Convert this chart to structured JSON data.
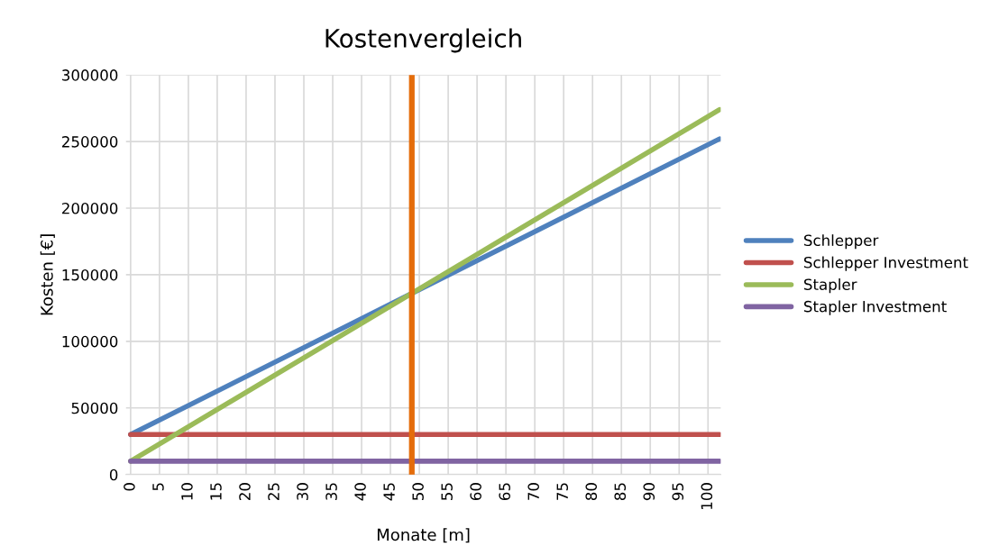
{
  "chart_data": {
    "type": "line",
    "title": "Kostenvergleich",
    "xlabel": "Monate [m]",
    "ylabel": "Kosten [€]",
    "x": [
      0,
      102
    ],
    "series": [
      {
        "name": "Schlepper",
        "color": "#4f81bd",
        "values": [
          30000,
          252000
        ]
      },
      {
        "name": "Schlepper Investment",
        "color": "#c0504d",
        "values": [
          30000,
          30000
        ]
      },
      {
        "name": "Stapler",
        "color": "#9bbb59",
        "values": [
          10000,
          274000
        ]
      },
      {
        "name": "Stapler Investment",
        "color": "#8064a2",
        "values": [
          10000,
          10000
        ]
      }
    ],
    "ref_lines": [
      {
        "axis": "x",
        "value": 48.7,
        "color": "#e46c0a"
      }
    ],
    "xlim": [
      -0.8,
      102.2
    ],
    "xticks": [
      0,
      5,
      10,
      15,
      20,
      25,
      30,
      35,
      40,
      45,
      50,
      55,
      60,
      65,
      70,
      75,
      80,
      85,
      90,
      95,
      100
    ],
    "ylim": [
      0,
      300000
    ],
    "yticks": [
      0,
      50000,
      100000,
      150000,
      200000,
      250000,
      300000
    ],
    "grid": true,
    "legend": "right",
    "marker": "none",
    "line_style": "solid"
  }
}
